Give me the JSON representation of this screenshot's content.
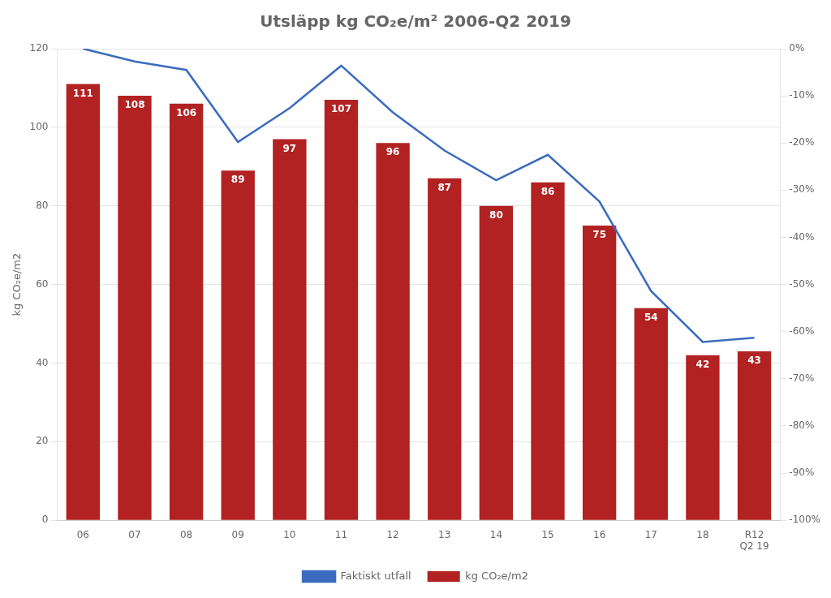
{
  "chart_data": {
    "type": "bar",
    "title": "Utsläpp kg CO₂e/m² 2006-Q2 2019",
    "categories": [
      "06",
      "07",
      "08",
      "09",
      "10",
      "11",
      "12",
      "13",
      "14",
      "15",
      "16",
      "17",
      "18",
      "R12\nQ2 19"
    ],
    "ylabel": "kg CO₂e/m2",
    "ylim": [
      0,
      120
    ],
    "yticks": [
      0,
      20,
      40,
      60,
      80,
      100,
      120
    ],
    "y2lim": [
      -1.0,
      0.0
    ],
    "y2ticks": [
      {
        "value": 0,
        "label": "0%"
      },
      {
        "value": -0.1,
        "label": "-10%"
      },
      {
        "value": -0.2,
        "label": "-20%"
      },
      {
        "value": -0.3,
        "label": "-30%"
      },
      {
        "value": -0.4,
        "label": "-40%"
      },
      {
        "value": -0.5,
        "label": "-50%"
      },
      {
        "value": -0.6,
        "label": "-60%"
      },
      {
        "value": -0.7,
        "label": "-70%"
      },
      {
        "value": -0.8,
        "label": "-80%"
      },
      {
        "value": -0.9,
        "label": "-90%"
      },
      {
        "value": -1.0,
        "label": "-100%"
      }
    ],
    "grid": true,
    "legend": "bottom",
    "series": [
      {
        "name": "kg CO₂e/m2",
        "type": "bar",
        "color": "#B22222",
        "data_labels": true,
        "values": [
          111,
          108,
          106,
          89,
          97,
          107,
          96,
          87,
          80,
          86,
          75,
          54,
          42,
          43
        ]
      },
      {
        "name": "Faktiskt utfall",
        "type": "line",
        "color": "#3B6BBF",
        "axis": "y2",
        "marker": "none",
        "values": [
          0.0,
          -0.027,
          -0.045,
          -0.198,
          -0.126,
          -0.036,
          -0.135,
          -0.216,
          -0.279,
          -0.225,
          -0.324,
          -0.514,
          -0.622,
          -0.613
        ]
      }
    ]
  }
}
